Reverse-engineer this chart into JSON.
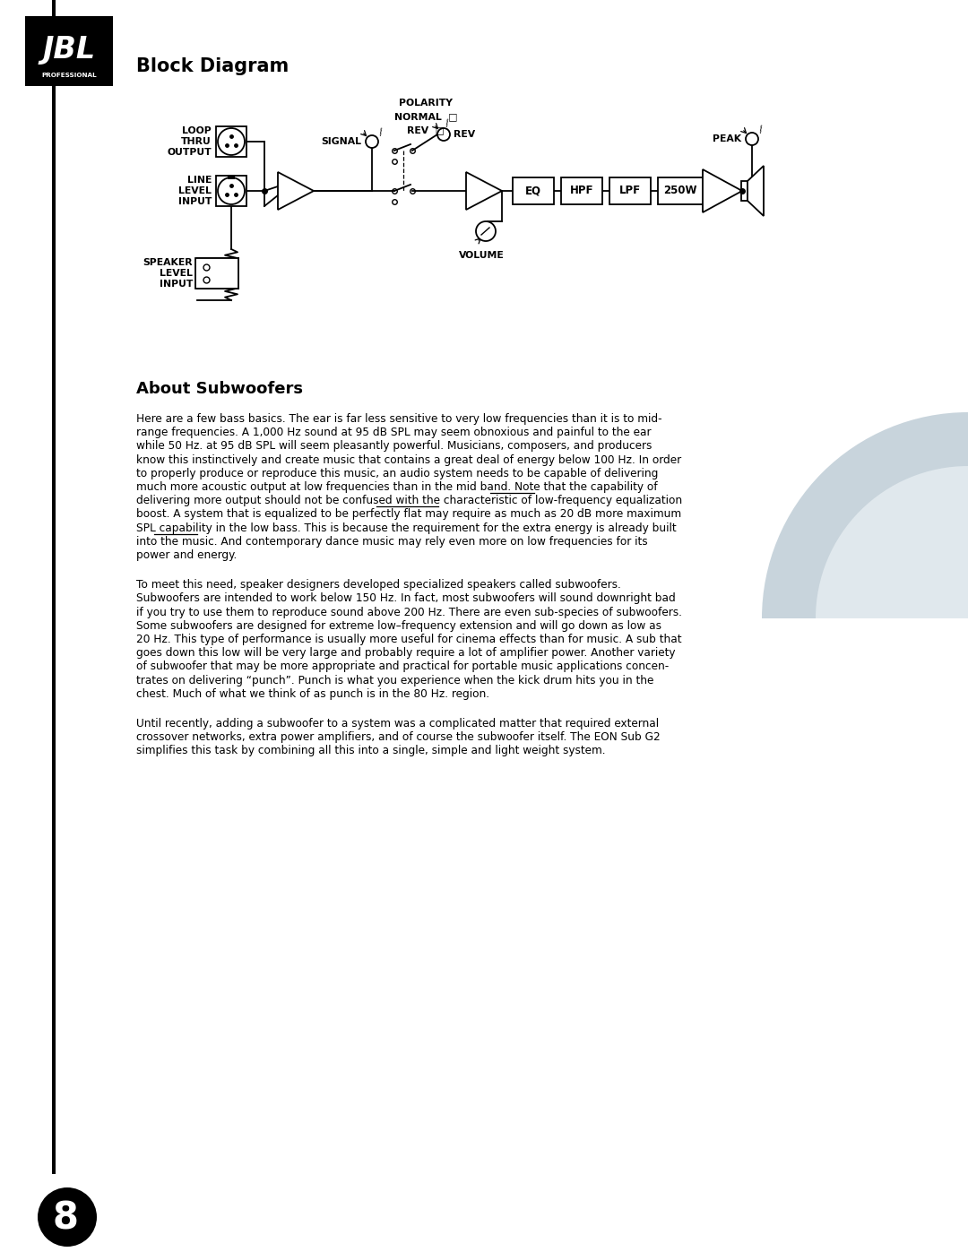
{
  "page_bg": "#ffffff",
  "corner_bg": "#c8d4dc",
  "corner_bg2": "#e0e8ed",
  "title_block_diagram": "Block Diagram",
  "title_about": "About Subwoofers",
  "p1_lines": [
    "Here are a few bass basics. The ear is far less sensitive to very low frequencies than it is to mid-",
    "range frequencies. A 1,000 Hz sound at 95 dB SPL may seem obnoxious and painful to the ear",
    "while 50 Hz. at 95 dB SPL will seem pleasantly powerful. Musicians, composers, and producers",
    "know this instinctively and create music that contains a great deal of energy below 100 Hz. In order",
    "to properly produce or reproduce this music, an audio system needs to be capable of delivering",
    "much more acoustic output at low frequencies than in the mid band. Note that the capability of",
    "delivering more output should not be confused with the characteristic of low-frequency equalization",
    "boost. A system that is equalized to be perfectly flat may require as much as 20 dB more maximum",
    "SPL capability in the low bass. This is because the requirement for the extra energy is already built",
    "into the music. And contemporary dance music may rely even more on low frequencies for its",
    "power and energy."
  ],
  "p1_underlines": [
    {
      "line": 5,
      "pre": "much more acoustic output at low frequencies than in the mid band. Note that the ",
      "word": "capability"
    },
    {
      "line": 6,
      "pre": "delivering more output should not be confused with the ",
      "word": "characteristic"
    },
    {
      "line": 8,
      "pre": "SPL ",
      "word": "capability"
    }
  ],
  "p2_lines": [
    "To meet this need, speaker designers developed specialized speakers called subwoofers.",
    "Subwoofers are intended to work below 150 Hz. In fact, most subwoofers will sound downright bad",
    "if you try to use them to reproduce sound above 200 Hz. There are even sub-species of subwoofers.",
    "Some subwoofers are designed for extreme low–frequency extension and will go down as low as",
    "20 Hz. This type of performance is usually more useful for cinema effects than for music. A sub that",
    "goes down this low will be very large and probably require a lot of amplifier power. Another variety",
    "of subwoofer that may be more appropriate and practical for portable music applications concen-",
    "trates on delivering “punch”. Punch is what you experience when the kick drum hits you in the",
    "chest. Much of what we think of as punch is in the 80 Hz. region."
  ],
  "p3_lines": [
    "Until recently, adding a subwoofer to a system was a complicated matter that required external",
    "crossover networks, extra power amplifiers, and of course the subwoofer itself. The EON Sub G2",
    "simplifies this task by combining all this into a single, simple and light weight system."
  ],
  "page_number": "8"
}
